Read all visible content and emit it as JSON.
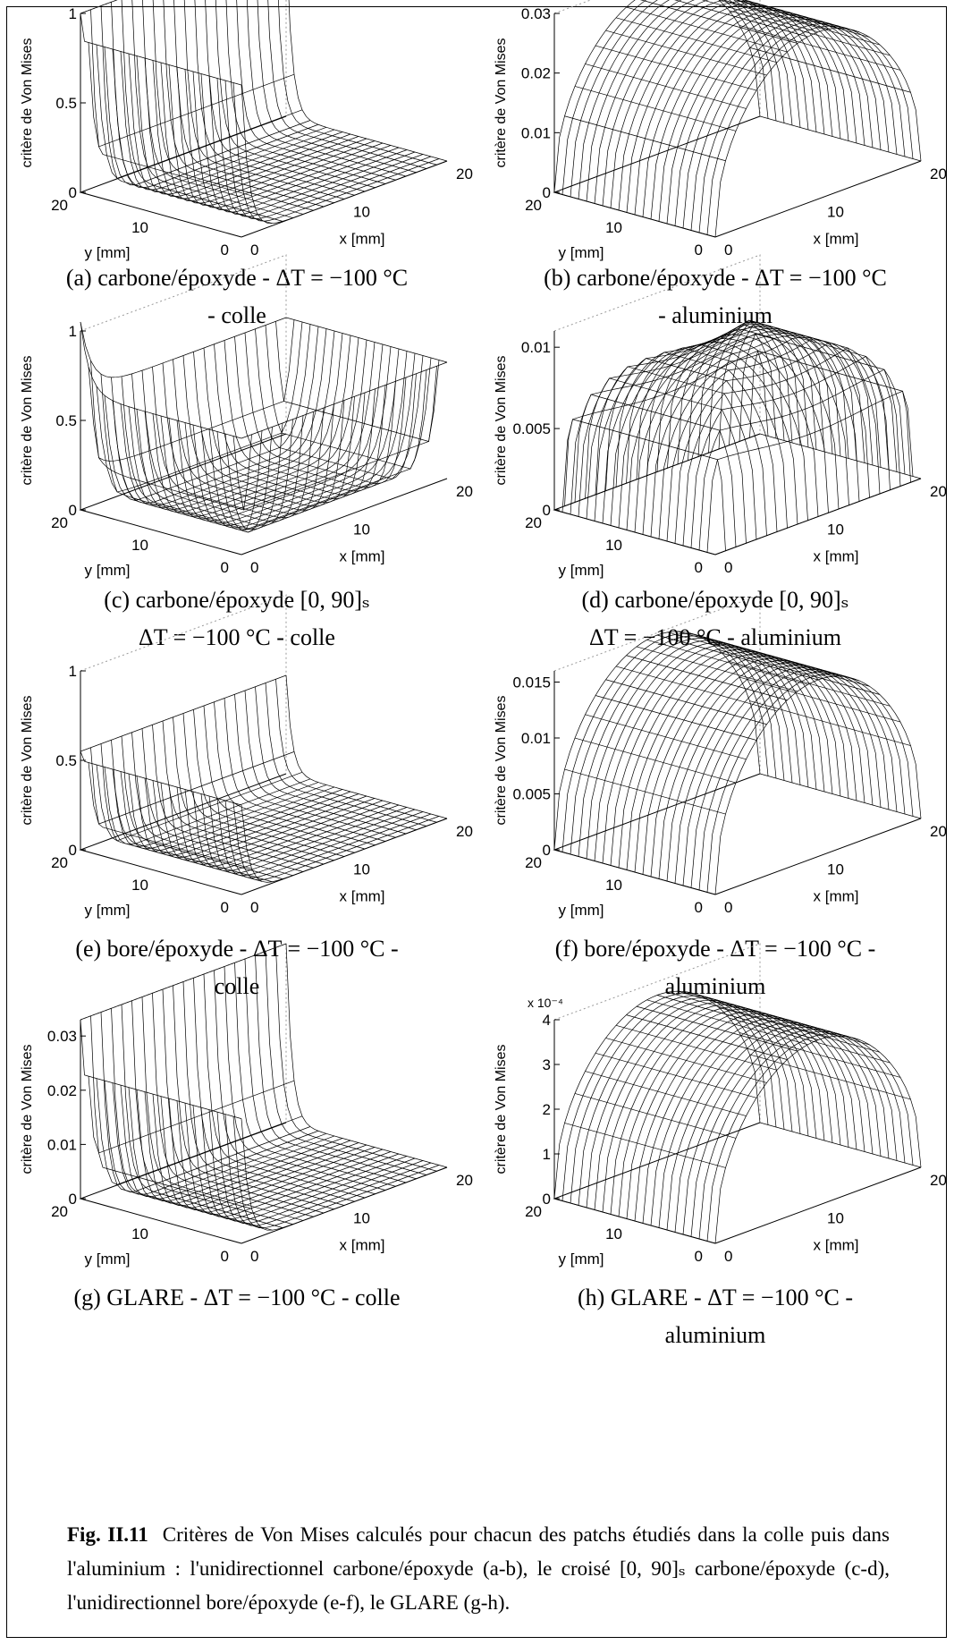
{
  "panels": [
    {
      "id": "a",
      "type": "edge",
      "zmax": 1,
      "zticks": [
        "0",
        "0.5",
        "1"
      ],
      "ztickvals": [
        0,
        0.5,
        1
      ],
      "exponent": "",
      "zlabel": "critère de Von Mises",
      "ylabel": "y [mm]",
      "xlabel": "x [mm]",
      "yticks": [
        "0",
        "10",
        "20"
      ],
      "xticks": [
        "0",
        "10",
        "20"
      ],
      "peaks": {
        "left": 0.85,
        "right": 1.0
      },
      "caption": [
        "(a) carbone/époxyde - ΔT = −100 °C",
        "- colle"
      ]
    },
    {
      "id": "b",
      "type": "dome",
      "zmax": 0.03,
      "zticks": [
        "0",
        "0.01",
        "0.02",
        "0.03"
      ],
      "ztickvals": [
        0,
        0.01,
        0.02,
        0.03
      ],
      "exponent": "",
      "zlabel": "critère de Von Mises",
      "ylabel": "y [mm]",
      "xlabel": "x [mm]",
      "yticks": [
        "0",
        "10",
        "20"
      ],
      "xticks": [
        "0",
        "10",
        "20"
      ],
      "peak": 0.028,
      "caption": [
        "(b) carbone/époxyde - ΔT = −100 °C",
        "- aluminium"
      ]
    },
    {
      "id": "c",
      "type": "bowl",
      "zmax": 1,
      "zticks": [
        "0",
        "0.5",
        "1"
      ],
      "ztickvals": [
        0,
        0.5,
        1
      ],
      "exponent": "",
      "zlabel": "critère de Von Mises",
      "ylabel": "y [mm]",
      "xlabel": "x [mm]",
      "yticks": [
        "0",
        "10",
        "20"
      ],
      "xticks": [
        "0",
        "10",
        "20"
      ],
      "peak": 0.65,
      "corner": 1.05,
      "caption": [
        "(c) carbone/époxyde [0, 90]ₛ",
        "ΔT = −100 °C - colle"
      ]
    },
    {
      "id": "d",
      "type": "tent",
      "zmax": 0.011,
      "zticks": [
        "0",
        "0.005",
        "0.01"
      ],
      "ztickvals": [
        0,
        0.005,
        0.01
      ],
      "exponent": "",
      "zlabel": "critère de Von Mises",
      "ylabel": "y [mm]",
      "xlabel": "x [mm]",
      "yticks": [
        "0",
        "10",
        "20"
      ],
      "xticks": [
        "0",
        "10",
        "20"
      ],
      "peak": 0.0105,
      "caption": [
        "(d) carbone/époxyde [0, 90]ₛ",
        "ΔT = −100 °C - aluminium"
      ]
    },
    {
      "id": "e",
      "type": "edge",
      "zmax": 1,
      "zticks": [
        "0",
        "0.5",
        "1"
      ],
      "ztickvals": [
        0,
        0.5,
        1
      ],
      "exponent": "",
      "zlabel": "critère de Von Mises",
      "ylabel": "y [mm]",
      "xlabel": "x [mm]",
      "yticks": [
        "0",
        "10",
        "20"
      ],
      "xticks": [
        "0",
        "10",
        "20"
      ],
      "peaks": {
        "left": 0.5,
        "right": 0.55
      },
      "caption": [
        "(e) bore/époxyde - ΔT = −100 °C -",
        "colle"
      ]
    },
    {
      "id": "f",
      "type": "dome",
      "zmax": 0.016,
      "zticks": [
        "0",
        "0.005",
        "0.01",
        "0.015"
      ],
      "ztickvals": [
        0,
        0.005,
        0.01,
        0.015
      ],
      "exponent": "",
      "zlabel": "critère de Von Mises",
      "ylabel": "y [mm]",
      "xlabel": "x [mm]",
      "yticks": [
        "0",
        "10",
        "20"
      ],
      "xticks": [
        "0",
        "10",
        "20"
      ],
      "peak": 0.0158,
      "caption": [
        "(f) bore/époxyde - ΔT = −100 °C -",
        "aluminium"
      ]
    },
    {
      "id": "g",
      "type": "edge",
      "zmax": 0.033,
      "zticks": [
        "0",
        "0.01",
        "0.02",
        "0.03"
      ],
      "ztickvals": [
        0,
        0.01,
        0.02,
        0.03
      ],
      "exponent": "",
      "zlabel": "critère de Von Mises",
      "ylabel": "y [mm]",
      "xlabel": "x [mm]",
      "yticks": [
        "0",
        "10",
        "20"
      ],
      "xticks": [
        "0",
        "10",
        "20"
      ],
      "peaks": {
        "left": 0.023,
        "right": 0.033
      },
      "caption": [
        "(g) GLARE - ΔT = −100 °C - colle",
        ""
      ]
    },
    {
      "id": "h",
      "type": "dome",
      "zmax": 4,
      "zticks": [
        "0",
        "1",
        "2",
        "3",
        "4"
      ],
      "ztickvals": [
        0,
        1,
        2,
        3,
        4
      ],
      "exponent": "x 10⁻⁴",
      "zlabel": "critère de Von Mises",
      "ylabel": "y [mm]",
      "xlabel": "x [mm]",
      "yticks": [
        "0",
        "10",
        "20"
      ],
      "xticks": [
        "0",
        "10",
        "20"
      ],
      "peak": 3.7,
      "caption": [
        "(h) GLARE - ΔT = −100 °C -",
        "aluminium"
      ]
    }
  ],
  "figure_caption": {
    "label": "Fig. II.11",
    "text": "Critères de Von Mises calculés pour chacun des patchs étudiés dans la colle puis dans l'aluminium : l'unidirectionnel carbone/époxyde (a-b), le croisé [0, 90]ₛ carbone/époxyde (c-d), l'unidirectionnel bore/époxyde (e-f), le GLARE (g-h)."
  }
}
